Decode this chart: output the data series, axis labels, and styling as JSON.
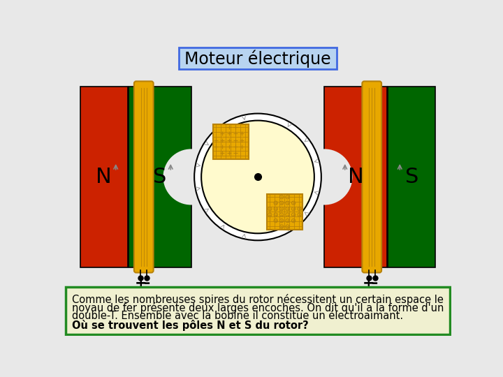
{
  "title": "Moteur électrique",
  "bg_color": "#e8e8e8",
  "title_box_color": "#b8d4f0",
  "title_border_color": "#4169e1",
  "text_block_bg": "#f0f0d0",
  "text_block_border": "#228b22",
  "red_color": "#cc2200",
  "green_color": "#006600",
  "gold_color": "#e8a800",
  "gold_dark": "#b8820a",
  "gold_light": "#f0c040",
  "rotor_fill": "#fffacd",
  "white": "#ffffff",
  "caption_line1": "Comme les nombreuses spires du rotor nécessitent un certain espace le",
  "caption_line2": "noyau de fer présente deux larges encoches. On dit qu'il a la forme d'un",
  "caption_line3": "double-T. Ensemble avec la bobine il constitue un électroaimant.",
  "caption_line4_bold": "Où se trouvent les pôles N et S du rotor?"
}
